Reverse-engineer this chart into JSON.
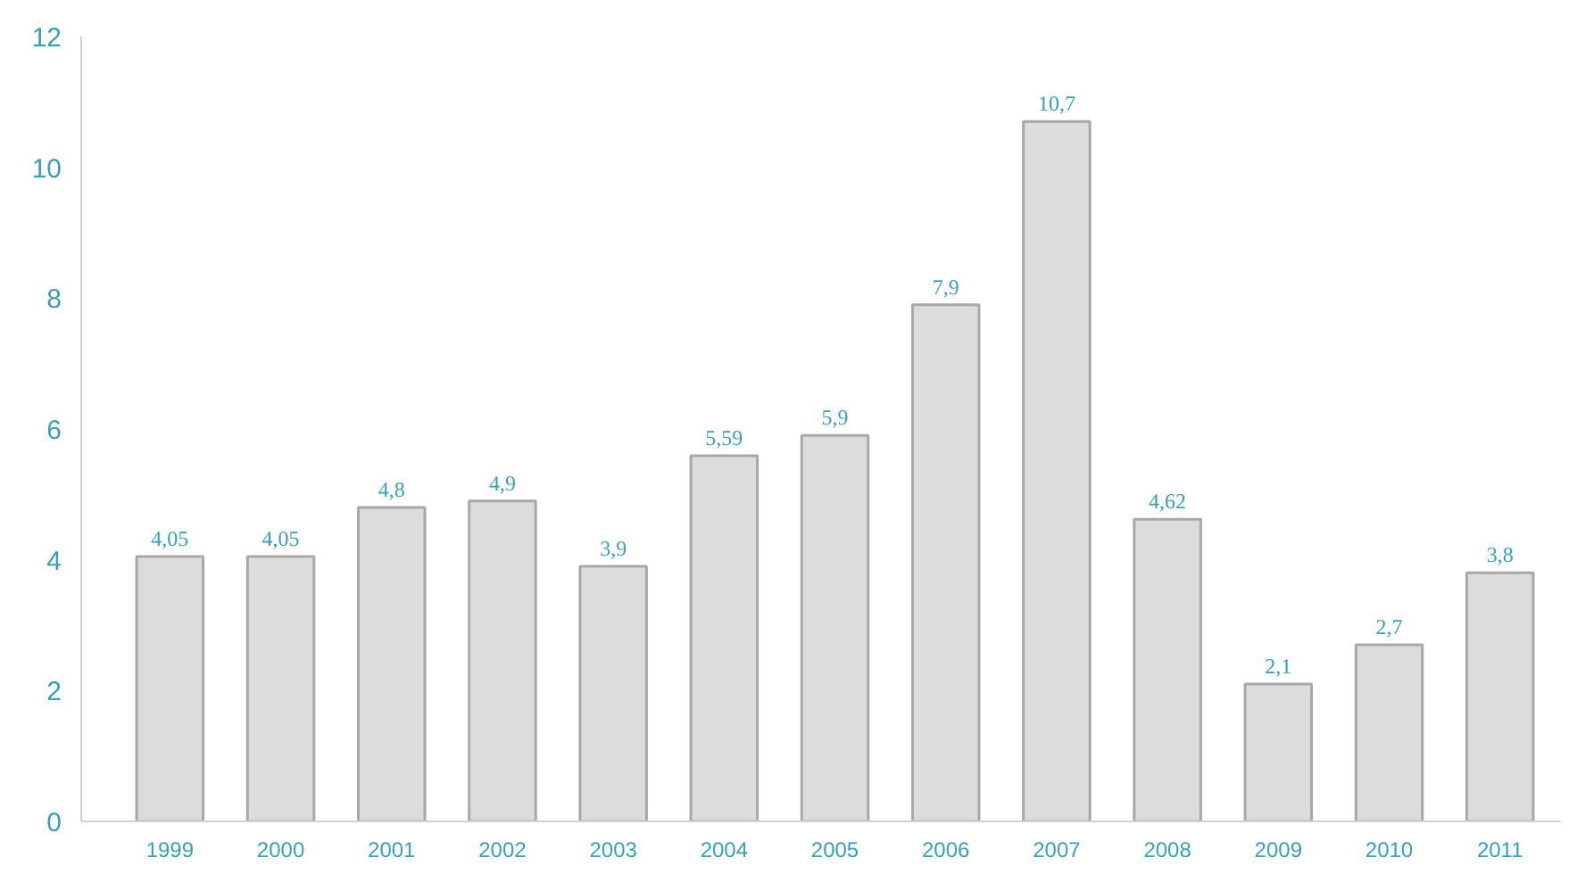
{
  "chart_data": {
    "type": "bar",
    "categories": [
      "1999",
      "2000",
      "2001",
      "2002",
      "2003",
      "2004",
      "2005",
      "2006",
      "2007",
      "2008",
      "2009",
      "2010",
      "2011"
    ],
    "values": [
      4.05,
      4.05,
      4.8,
      4.9,
      3.9,
      5.59,
      5.9,
      7.9,
      10.7,
      4.62,
      2.1,
      2.7,
      3.8
    ],
    "value_labels": [
      "4,05",
      "4,05",
      "4,8",
      "4,9",
      "3,9",
      "5,59",
      "5,9",
      "7,9",
      "10,7",
      "4,62",
      "2,1",
      "2,7",
      "3,8"
    ],
    "color": "#dcdcdc",
    "ylim": [
      0,
      12
    ],
    "yticks": [
      0,
      2,
      4,
      6,
      8,
      10,
      12
    ],
    "grid": false
  }
}
